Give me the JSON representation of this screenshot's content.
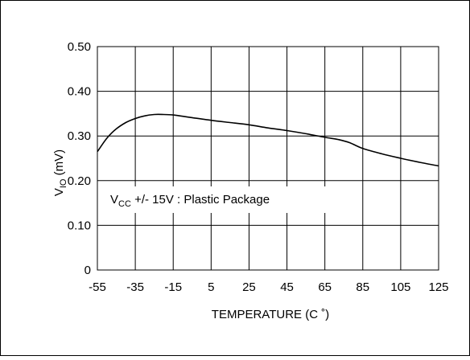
{
  "chart_data": {
    "type": "line",
    "title": "",
    "xlabel": "TEMPERATURE (C ˚)",
    "ylabel": {
      "main": "V",
      "sub": "IO",
      "rest": " (mV)"
    },
    "x_ticks": [
      "-55",
      "-35",
      "-15",
      "5",
      "25",
      "45",
      "65",
      "85",
      "105",
      "125"
    ],
    "y_ticks": [
      "0",
      "0.10",
      "0.20",
      "0.30",
      "0.40",
      "0.50"
    ],
    "xlim": [
      -55,
      125
    ],
    "ylim": [
      0,
      0.5
    ],
    "grid": true,
    "annotation": {
      "main": "V",
      "sub": "CC",
      "rest": " +/- 15V : Plastic Package"
    },
    "series": [
      {
        "x": [
          -55,
          -50,
          -45,
          -40,
          -35,
          -30,
          -25,
          -20,
          -15,
          -10,
          -5,
          5,
          15,
          25,
          35,
          45,
          55,
          65,
          72,
          78,
          85,
          95,
          105,
          115,
          125
        ],
        "values": [
          0.265,
          0.295,
          0.316,
          0.33,
          0.339,
          0.345,
          0.348,
          0.348,
          0.347,
          0.344,
          0.341,
          0.335,
          0.33,
          0.325,
          0.318,
          0.312,
          0.305,
          0.297,
          0.292,
          0.285,
          0.272,
          0.26,
          0.25,
          0.241,
          0.233
        ]
      }
    ]
  }
}
